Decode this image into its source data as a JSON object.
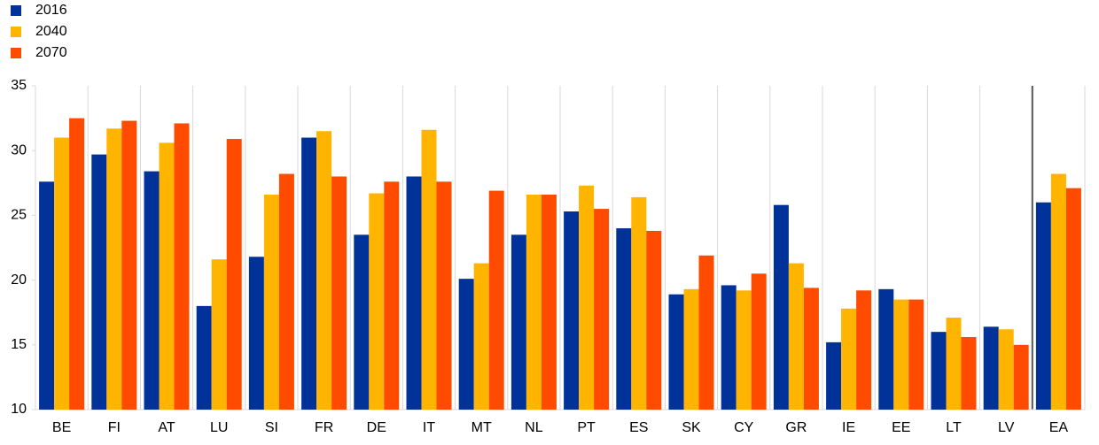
{
  "chart_data": {
    "type": "bar",
    "categories": [
      "BE",
      "FI",
      "AT",
      "LU",
      "SI",
      "FR",
      "DE",
      "IT",
      "MT",
      "NL",
      "PT",
      "ES",
      "SK",
      "CY",
      "GR",
      "IE",
      "EE",
      "LT",
      "LV",
      "EA"
    ],
    "series": [
      {
        "name": "2016",
        "color": "#003299",
        "values": [
          27.6,
          29.7,
          28.4,
          18.0,
          21.8,
          31.0,
          23.5,
          28.0,
          20.1,
          23.5,
          25.3,
          24.0,
          18.9,
          19.6,
          25.8,
          15.2,
          19.3,
          16.0,
          16.4,
          26.0
        ]
      },
      {
        "name": "2040",
        "color": "#ffb400",
        "values": [
          31.0,
          31.7,
          30.6,
          21.6,
          26.6,
          31.5,
          26.7,
          31.6,
          21.3,
          26.6,
          27.3,
          26.4,
          19.3,
          19.2,
          21.3,
          17.8,
          18.5,
          17.1,
          16.2,
          28.2
        ]
      },
      {
        "name": "2070",
        "color": "#ff4b00",
        "values": [
          32.5,
          32.3,
          32.1,
          30.9,
          28.2,
          28.0,
          27.6,
          27.6,
          26.9,
          26.6,
          25.5,
          23.8,
          21.9,
          20.5,
          19.4,
          19.2,
          18.5,
          15.6,
          15.0,
          27.1
        ]
      }
    ],
    "ylim": [
      10,
      35
    ],
    "yticks": [
      10,
      15,
      20,
      25,
      30,
      35
    ],
    "legend": "top-left"
  }
}
